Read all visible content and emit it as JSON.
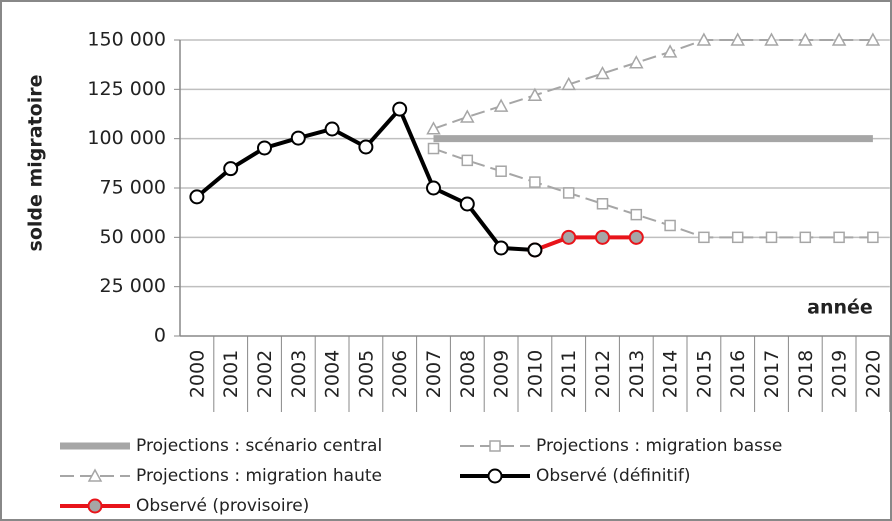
{
  "chart_data": {
    "type": "line",
    "y_label": "solde migratoire",
    "x_annotation": "année",
    "categories": [
      "2000",
      "2001",
      "2002",
      "2003",
      "2004",
      "2005",
      "2006",
      "2007",
      "2008",
      "2009",
      "2010",
      "2011",
      "2012",
      "2013",
      "2014",
      "2015",
      "2016",
      "2017",
      "2018",
      "2019",
      "2020"
    ],
    "ylim": [
      0,
      150000
    ],
    "yticks": [
      {
        "value": 0,
        "label": "0"
      },
      {
        "value": 25000,
        "label": "25 000"
      },
      {
        "value": 50000,
        "label": "50 000"
      },
      {
        "value": 75000,
        "label": "75 000"
      },
      {
        "value": 100000,
        "label": "100 000"
      },
      {
        "value": 125000,
        "label": "125 000"
      },
      {
        "value": 150000,
        "label": "150 000"
      }
    ],
    "grid": true,
    "series": [
      {
        "name": "Projections : scénario central",
        "color": "#a6a6a6",
        "width": 7,
        "marker": "none",
        "dash": "none",
        "values": [
          null,
          null,
          null,
          null,
          null,
          null,
          null,
          100000,
          100000,
          100000,
          100000,
          100000,
          100000,
          100000,
          100000,
          100000,
          100000,
          100000,
          100000,
          100000,
          100000
        ]
      },
      {
        "name": "Projections : migration basse",
        "color": "#a6a6a6",
        "width": 2,
        "marker": "square",
        "dash": "14 6",
        "values": [
          null,
          null,
          null,
          null,
          null,
          null,
          null,
          95000,
          89000,
          83500,
          78000,
          72500,
          67000,
          61500,
          56000,
          50000,
          50000,
          50000,
          50000,
          50000,
          50000
        ]
      },
      {
        "name": "Projections : migration haute",
        "color": "#a6a6a6",
        "width": 2,
        "marker": "triangle",
        "dash": "14 6",
        "values": [
          null,
          null,
          null,
          null,
          null,
          null,
          null,
          105000,
          111000,
          116500,
          122000,
          127500,
          133000,
          138500,
          144000,
          150000,
          150000,
          150000,
          150000,
          150000,
          150000
        ]
      },
      {
        "name": "Observé (définitif)",
        "color": "#000000",
        "width": 4,
        "marker": "circle",
        "dash": "none",
        "values": [
          70500,
          84800,
          95300,
          100300,
          104900,
          95800,
          115000,
          75000,
          66900,
          44600,
          43600,
          null,
          null,
          null,
          null,
          null,
          null,
          null,
          null,
          null,
          null
        ]
      },
      {
        "name": "Observé (provisoire)",
        "color": "#e8141a",
        "width": 4,
        "marker": "circle-grey",
        "dash": "none",
        "values": [
          null,
          null,
          null,
          null,
          null,
          null,
          null,
          null,
          null,
          null,
          43600,
          50000,
          50000,
          50000,
          null,
          null,
          null,
          null,
          null,
          null,
          null
        ]
      }
    ]
  }
}
